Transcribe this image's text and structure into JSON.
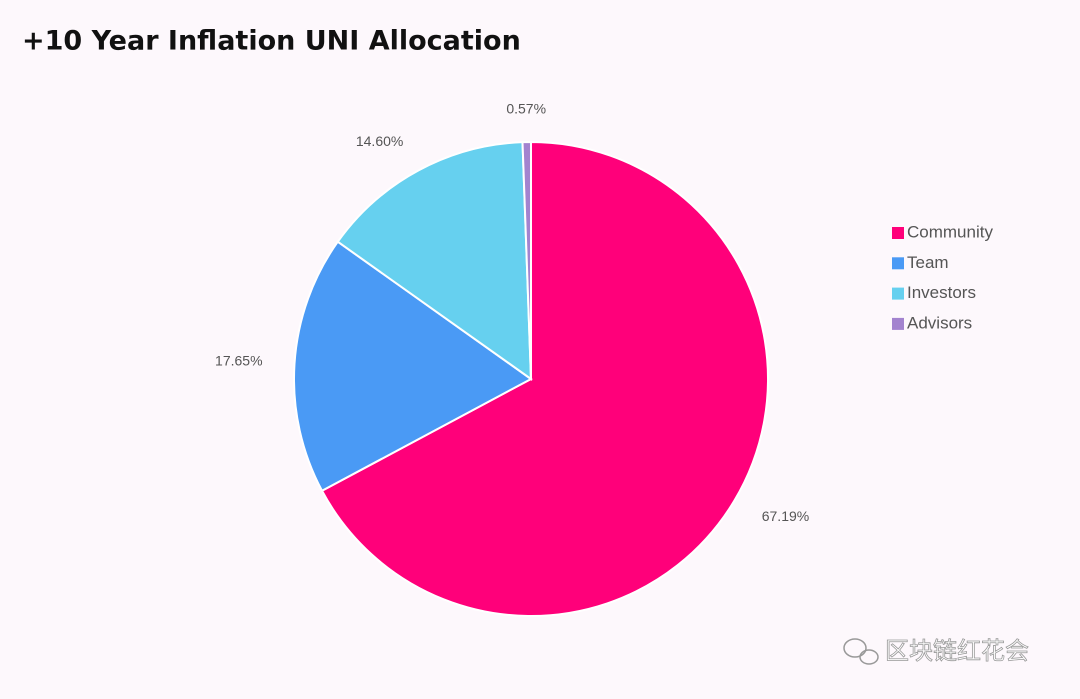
{
  "chart_data": {
    "type": "pie",
    "title": "+10 Year Inflation UNI Allocation",
    "categories": [
      "Community",
      "Team",
      "Investors",
      "Advisors"
    ],
    "values": [
      67.19,
      17.65,
      14.6,
      0.57
    ],
    "value_labels": [
      "67.19%",
      "17.65%",
      "14.60%",
      "0.57%"
    ],
    "colors": [
      "#ff007a",
      "#4a9af5",
      "#66d0ef",
      "#a383cf"
    ],
    "legend": "right"
  },
  "watermark": "区块链红花会"
}
